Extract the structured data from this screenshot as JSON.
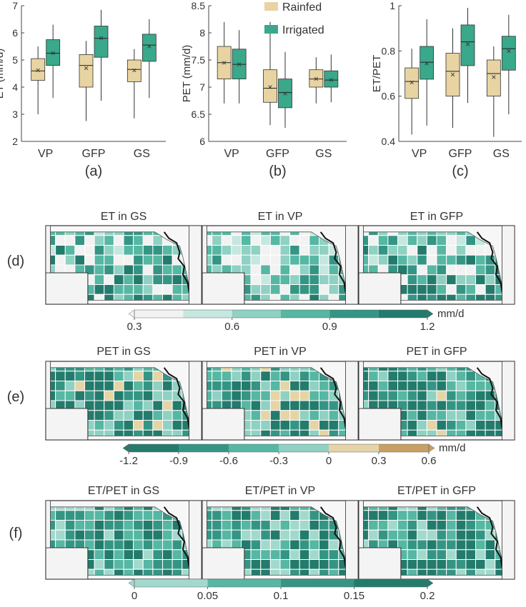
{
  "legend": {
    "rainfed": "Rainfed",
    "irrigated": "Irrigated"
  },
  "colors": {
    "rainfed": "#e8d4a2",
    "irrigated": "#3aa88a",
    "boxEdge": "#333333"
  },
  "chart_data": [
    {
      "type": "box",
      "panel": "(a)",
      "ylabel": "ET (mm/d)",
      "ylim": [
        2,
        7
      ],
      "yticks": [
        "2",
        "3",
        "4",
        "5",
        "6",
        "7"
      ],
      "categories": [
        "VP",
        "GFP",
        "GS"
      ],
      "series": [
        {
          "name": "Rainfed",
          "stats": [
            {
              "min": 3.0,
              "q1": 4.25,
              "median": 4.6,
              "q3": 5.05,
              "max": 5.5,
              "mean": 4.62
            },
            {
              "min": 2.75,
              "q1": 4.0,
              "median": 4.8,
              "q3": 5.2,
              "max": 5.7,
              "mean": 4.7
            },
            {
              "min": 2.85,
              "q1": 4.2,
              "median": 4.65,
              "q3": 5.0,
              "max": 5.4,
              "mean": 4.62
            }
          ]
        },
        {
          "name": "Irrigated",
          "stats": [
            {
              "min": 3.6,
              "q1": 4.8,
              "median": 5.25,
              "q3": 5.75,
              "max": 6.3,
              "mean": 5.25
            },
            {
              "min": 3.5,
              "q1": 5.1,
              "median": 5.8,
              "q3": 6.25,
              "max": 6.85,
              "mean": 5.8
            },
            {
              "min": 3.6,
              "q1": 4.95,
              "median": 5.55,
              "q3": 5.95,
              "max": 6.5,
              "mean": 5.5
            }
          ]
        }
      ]
    },
    {
      "type": "box",
      "panel": "(b)",
      "ylabel": "PET (mm/d)",
      "ylim": [
        6,
        8.5
      ],
      "yticks": [
        "6",
        "6.5",
        "7",
        "7.5",
        "8",
        "8.5"
      ],
      "categories": [
        "VP",
        "GFP",
        "GS"
      ],
      "series": [
        {
          "name": "Rainfed",
          "stats": [
            {
              "min": 6.7,
              "q1": 7.15,
              "median": 7.45,
              "q3": 7.75,
              "max": 8.2,
              "mean": 7.45
            },
            {
              "min": 6.3,
              "q1": 6.72,
              "median": 6.98,
              "q3": 7.32,
              "max": 8.2,
              "mean": 7.0
            },
            {
              "min": 6.7,
              "q1": 7.0,
              "median": 7.15,
              "q3": 7.32,
              "max": 7.55,
              "mean": 7.15
            }
          ]
        },
        {
          "name": "Irrigated",
          "stats": [
            {
              "min": 6.7,
              "q1": 7.15,
              "median": 7.42,
              "q3": 7.7,
              "max": 8.05,
              "mean": 7.42
            },
            {
              "min": 6.25,
              "q1": 6.62,
              "median": 6.9,
              "q3": 7.15,
              "max": 7.65,
              "mean": 6.88
            },
            {
              "min": 6.72,
              "q1": 7.0,
              "median": 7.13,
              "q3": 7.3,
              "max": 7.6,
              "mean": 7.13
            }
          ]
        }
      ]
    },
    {
      "type": "box",
      "panel": "(c)",
      "ylabel": "ET/PET",
      "ylim": [
        0.4,
        1
      ],
      "yticks": [
        "0.4",
        "0.6",
        "0.8",
        "1"
      ],
      "categories": [
        "VP",
        "GFP",
        "GS"
      ],
      "series": [
        {
          "name": "Rainfed",
          "stats": [
            {
              "min": 0.43,
              "q1": 0.59,
              "median": 0.665,
              "q3": 0.725,
              "max": 0.81,
              "mean": 0.66
            },
            {
              "min": 0.46,
              "q1": 0.6,
              "median": 0.71,
              "q3": 0.79,
              "max": 0.9,
              "mean": 0.695
            },
            {
              "min": 0.42,
              "q1": 0.6,
              "median": 0.7,
              "q3": 0.76,
              "max": 0.82,
              "mean": 0.685
            }
          ]
        },
        {
          "name": "Irrigated",
          "stats": [
            {
              "min": 0.47,
              "q1": 0.675,
              "median": 0.75,
              "q3": 0.82,
              "max": 0.94,
              "mean": 0.745
            },
            {
              "min": 0.57,
              "q1": 0.735,
              "median": 0.84,
              "q3": 0.915,
              "max": 0.99,
              "mean": 0.83
            },
            {
              "min": 0.52,
              "q1": 0.715,
              "median": 0.81,
              "q3": 0.865,
              "max": 0.96,
              "mean": 0.8
            }
          ]
        }
      ]
    },
    {
      "type": "heatmap",
      "panel": "(d)",
      "maps": [
        "ET in GS",
        "ET in VP",
        "ET in GFP"
      ],
      "colorbar": {
        "range": [
          0.3,
          1.2
        ],
        "ticks": [
          "0.3",
          "0.6",
          "0.9",
          "1.2"
        ],
        "unit": "mm/d",
        "colors": [
          "#f2f2f2",
          "#c5e7df",
          "#8fd1c2",
          "#56b7a3",
          "#359584",
          "#237b6c"
        ]
      }
    },
    {
      "type": "heatmap",
      "panel": "(e)",
      "maps": [
        "PET in GS",
        "PET in VP",
        "PET in GFP"
      ],
      "colorbar": {
        "range": [
          -1.2,
          0.6
        ],
        "ticks": [
          "-1.2",
          "-0.9",
          "-0.6",
          "-0.3",
          "0",
          "0.3",
          "0.6"
        ],
        "unit": "mm/d",
        "colors": [
          "#237b6c",
          "#359584",
          "#56b7a3",
          "#8fd1c2",
          "#e6d4a6",
          "#c9a063"
        ]
      }
    },
    {
      "type": "heatmap",
      "panel": "(f)",
      "maps": [
        "ET/PET in GS",
        "ET/PET in VP",
        "ET/PET in GFP"
      ],
      "colorbar": {
        "range": [
          0,
          0.2
        ],
        "ticks": [
          "0",
          "0.05",
          "0.1",
          "0.15",
          "0.2"
        ],
        "unit": "",
        "colors": [
          "#a3d9cd",
          "#56b7a3",
          "#359584",
          "#237b6c"
        ]
      }
    }
  ]
}
